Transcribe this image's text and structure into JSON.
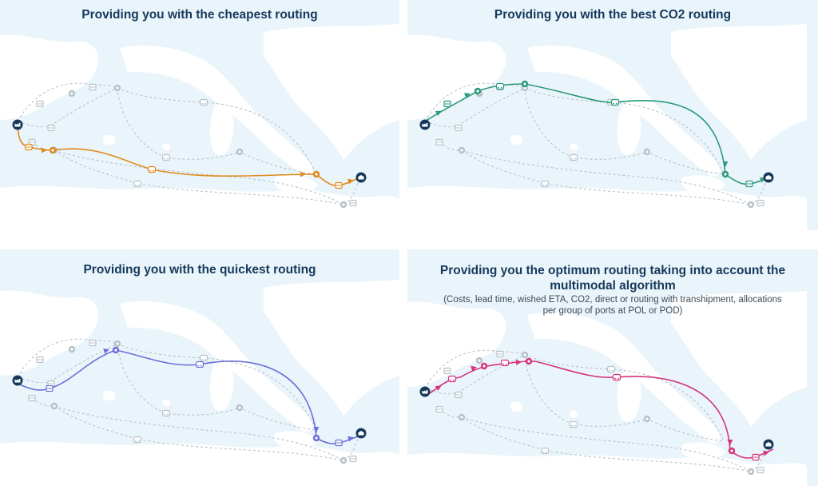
{
  "panels": [
    {
      "title": "Providing you with the cheapest routing",
      "subtitle": "",
      "color": "#e08a1e",
      "route": "cheapest"
    },
    {
      "title": "Providing you with the best CO2 routing",
      "subtitle": "",
      "color": "#2a9a7a",
      "route": "co2"
    },
    {
      "title": "Providing you with the quickest routing",
      "subtitle": "",
      "color": "#6a6fd8",
      "route": "quickest"
    },
    {
      "title": "Providing you the optimum routing taking into account the multimodal algorithm",
      "subtitle": "(Costs, lead time, wished ETA, CO2, direct or routing with transhipment, allocations per group of ports at POL or POD)",
      "color": "#d4347a",
      "route": "optimum"
    }
  ],
  "legend_icons": {
    "origin": "factory-icon",
    "destination": "warehouse-icon",
    "hub": "port-hub-icon",
    "truck": "truck-icon",
    "train": "train-icon",
    "ship": "ship-icon"
  }
}
